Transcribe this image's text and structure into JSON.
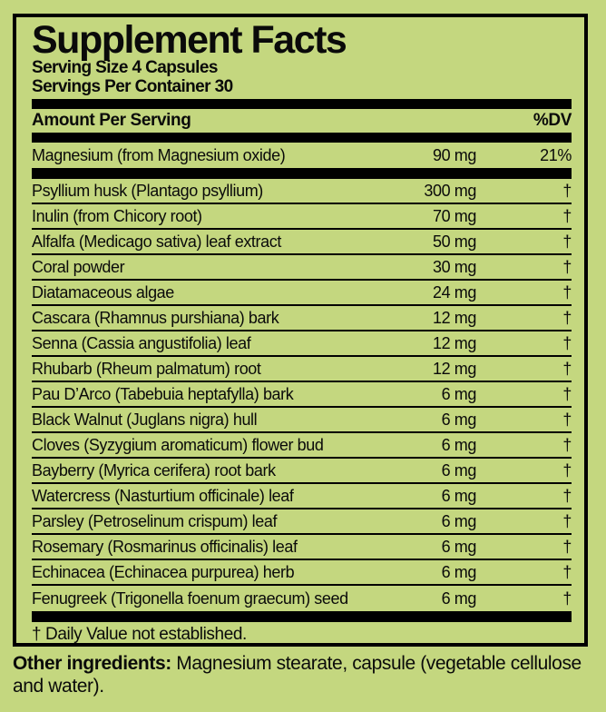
{
  "colors": {
    "background": "#c4d77f",
    "rule": "#000000",
    "text": "#0a0a0a"
  },
  "label": {
    "title": "Supplement Facts",
    "serving_size": "Serving Size 4 Capsules",
    "servings_per_container": "Servings Per Container 30",
    "column_headers": {
      "amount": "Amount Per Serving",
      "dv": "%DV"
    },
    "main_row": {
      "name": "Magnesium (from Magnesium oxide)",
      "amount": "90 mg",
      "dv": "21%"
    },
    "rows": [
      {
        "name": "Psyllium husk (Plantago psyllium)",
        "amount": "300 mg",
        "dv": "†"
      },
      {
        "name": "Inulin (from Chicory root)",
        "amount": "70 mg",
        "dv": "†"
      },
      {
        "name": "Alfalfa (Medicago sativa) leaf extract",
        "amount": "50 mg",
        "dv": "†"
      },
      {
        "name": "Coral powder",
        "amount": "30 mg",
        "dv": "†"
      },
      {
        "name": "Diatamaceous algae",
        "amount": "24 mg",
        "dv": "†"
      },
      {
        "name": "Cascara (Rhamnus purshiana) bark",
        "amount": "12 mg",
        "dv": "†"
      },
      {
        "name": "Senna (Cassia angustifolia) leaf",
        "amount": "12 mg",
        "dv": "†"
      },
      {
        "name": "Rhubarb (Rheum palmatum) root",
        "amount": "12 mg",
        "dv": "†"
      },
      {
        "name": "Pau D’Arco (Tabebuia heptafylla) bark",
        "amount": "6 mg",
        "dv": "†"
      },
      {
        "name": "Black Walnut (Juglans nigra) hull",
        "amount": "6 mg",
        "dv": "†"
      },
      {
        "name": "Cloves (Syzygium aromaticum) flower bud",
        "amount": "6 mg",
        "dv": "†"
      },
      {
        "name": "Bayberry (Myrica cerifera) root bark",
        "amount": "6 mg",
        "dv": "†"
      },
      {
        "name": "Watercress (Nasturtium officinale) leaf",
        "amount": "6 mg",
        "dv": "†"
      },
      {
        "name": "Parsley (Petroselinum crispum) leaf",
        "amount": "6 mg",
        "dv": "†"
      },
      {
        "name": "Rosemary (Rosmarinus officinalis) leaf",
        "amount": "6 mg",
        "dv": "†"
      },
      {
        "name": "Echinacea (Echinacea purpurea) herb",
        "amount": "6 mg",
        "dv": "†"
      },
      {
        "name": "Fenugreek (Trigonella foenum graecum) seed",
        "amount": "6 mg",
        "dv": "†"
      }
    ],
    "footnote": "† Daily Value not established.",
    "other_ingredients_label": "Other ingredients:",
    "other_ingredients_text": " Magnesium stearate, capsule (vegetable cellulose and water)."
  }
}
